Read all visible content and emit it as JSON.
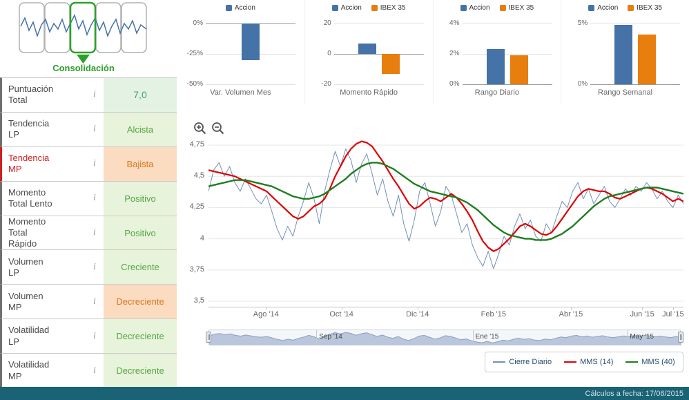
{
  "pattern_panel": {
    "label": "Consolidación"
  },
  "sidebar": {
    "info_icon": "i",
    "rows": [
      {
        "label": "Puntuación Total",
        "value": "7,0",
        "tone": "score",
        "alert": false
      },
      {
        "label": "Tendencia LP",
        "value": "Alcista",
        "tone": "good",
        "alert": false
      },
      {
        "label": "Tendencia MP",
        "value": "Bajista",
        "tone": "bad",
        "alert": true
      },
      {
        "label": "Momento Total Lento",
        "value": "Positivo",
        "tone": "good",
        "alert": false
      },
      {
        "label": "Momento Total Rápido",
        "value": "Positivo",
        "tone": "good",
        "alert": false
      },
      {
        "label": "Volumen LP",
        "value": "Creciente",
        "tone": "good",
        "alert": false
      },
      {
        "label": "Volumen MP",
        "value": "Decreciente",
        "tone": "bad",
        "alert": false
      },
      {
        "label": "Volatilidad LP",
        "value": "Decreciente",
        "tone": "good",
        "alert": false
      },
      {
        "label": "Volatilidad MP",
        "value": "Decreciente",
        "tone": "good",
        "alert": false
      }
    ]
  },
  "icons": {
    "zoom_in": "magnifier-plus",
    "zoom_out": "magnifier-minus",
    "info": "italic-i",
    "pattern_arrow": "arrow-down"
  },
  "colors": {
    "accion": "#4572a7",
    "ibex": "#e87e0e",
    "good_bg": "#e7f3da",
    "good_text": "#55a545",
    "bad_bg": "#fbdcc1",
    "bad_text": "#d8761c",
    "alert_text": "#cf2020",
    "close_line": "#7090b8",
    "mms14": "#e00000",
    "mms40": "#1e7d1e",
    "nav_fill": "#b9c6dc",
    "nav_stroke": "#8aa0c2",
    "footer_bg": "#1a6375",
    "pattern_green": "#2ba02b"
  },
  "footer": {
    "text": "Cálculos a fecha: 17/06/2015"
  },
  "chart_data": {
    "mini_charts": [
      {
        "type": "bar",
        "title": "Var. Volumen Mes",
        "ylim": [
          -50,
          0
        ],
        "yticks": [
          {
            "v": 0,
            "label": "0%"
          },
          {
            "v": -25,
            "label": "-25%"
          },
          {
            "v": -50,
            "label": "-50%"
          }
        ],
        "series": [
          {
            "name": "Accion",
            "color": "#4572a7",
            "value": -30
          }
        ]
      },
      {
        "type": "bar",
        "title": "Momento Rápido",
        "ylim": [
          -20,
          20
        ],
        "yticks": [
          {
            "v": 20,
            "label": "20"
          },
          {
            "v": 0,
            "label": "0"
          },
          {
            "v": -20,
            "label": "-20"
          }
        ],
        "series": [
          {
            "name": "Accion",
            "color": "#4572a7",
            "value": 7
          },
          {
            "name": "IBEX 35",
            "color": "#e87e0e",
            "value": -13
          }
        ]
      },
      {
        "type": "bar",
        "title": "Rango Diario",
        "ylim": [
          0,
          4
        ],
        "yticks": [
          {
            "v": 4,
            "label": "4%"
          },
          {
            "v": 2,
            "label": "2%"
          },
          {
            "v": 0,
            "label": "0%"
          }
        ],
        "series": [
          {
            "name": "Accion",
            "color": "#4572a7",
            "value": 2.3
          },
          {
            "name": "IBEX 35",
            "color": "#e87e0e",
            "value": 1.9
          }
        ]
      },
      {
        "type": "bar",
        "title": "Rango Semanal",
        "ylim": [
          0,
          5
        ],
        "yticks": [
          {
            "v": 5,
            "label": "5%"
          },
          {
            "v": 0,
            "label": "0%"
          }
        ],
        "series": [
          {
            "name": "Accion",
            "color": "#4572a7",
            "value": 4.9
          },
          {
            "name": "IBEX 35",
            "color": "#e87e0e",
            "value": 4.1
          }
        ]
      }
    ],
    "price_chart": {
      "type": "line",
      "ylim": [
        3.45,
        4.85
      ],
      "yticks": [
        {
          "v": 4.75,
          "label": "4,75"
        },
        {
          "v": 4.5,
          "label": "4,5"
        },
        {
          "v": 4.25,
          "label": "4,25"
        },
        {
          "v": 4.0,
          "label": "4"
        },
        {
          "v": 3.75,
          "label": "3,75"
        },
        {
          "v": 3.5,
          "label": "3,5"
        }
      ],
      "xticks": [
        {
          "pos": 0.121,
          "label": "Ago '14"
        },
        {
          "pos": 0.28,
          "label": "Oct '14"
        },
        {
          "pos": 0.44,
          "label": "Dic '14"
        },
        {
          "pos": 0.6,
          "label": "Feb '15"
        },
        {
          "pos": 0.763,
          "label": "Abr '15"
        },
        {
          "pos": 0.913,
          "label": "Jun '15"
        },
        {
          "pos": 0.978,
          "label": "Jul '15"
        }
      ],
      "series": [
        {
          "name": "Cierre Diario",
          "color": "#7090b8",
          "width": 1,
          "values": [
            4.38,
            4.55,
            4.61,
            4.5,
            4.58,
            4.45,
            4.38,
            4.48,
            4.4,
            4.32,
            4.28,
            4.35,
            4.22,
            4.08,
            3.99,
            4.1,
            4.02,
            4.18,
            4.3,
            4.45,
            4.32,
            4.12,
            4.38,
            4.55,
            4.7,
            4.58,
            4.72,
            4.63,
            4.45,
            4.6,
            4.68,
            4.52,
            4.35,
            4.48,
            4.3,
            4.18,
            4.35,
            4.12,
            3.98,
            4.15,
            4.38,
            4.45,
            4.28,
            4.1,
            4.22,
            4.42,
            4.35,
            4.2,
            4.05,
            4.12,
            3.95,
            3.85,
            3.78,
            3.9,
            3.76,
            3.88,
            4.02,
            3.95,
            4.1,
            4.2,
            4.08,
            4.15,
            4.02,
            3.98,
            4.12,
            4.05,
            4.18,
            4.3,
            4.25,
            4.38,
            4.45,
            4.32,
            4.4,
            4.28,
            4.35,
            4.42,
            4.3,
            4.25,
            4.32,
            4.4,
            4.35,
            4.42,
            4.38,
            4.45,
            4.4,
            4.32,
            4.38,
            4.3,
            4.25,
            4.35,
            4.28
          ]
        },
        {
          "name": "MMS (14)",
          "color": "#e00000",
          "width": 2.2,
          "values": [
            4.55,
            4.54,
            4.53,
            4.52,
            4.51,
            4.5,
            4.48,
            4.46,
            4.44,
            4.42,
            4.4,
            4.38,
            4.34,
            4.3,
            4.26,
            4.22,
            4.18,
            4.16,
            4.18,
            4.22,
            4.26,
            4.28,
            4.32,
            4.4,
            4.5,
            4.58,
            4.66,
            4.72,
            4.76,
            4.78,
            4.77,
            4.74,
            4.68,
            4.62,
            4.55,
            4.48,
            4.42,
            4.35,
            4.28,
            4.24,
            4.26,
            4.3,
            4.33,
            4.32,
            4.3,
            4.33,
            4.36,
            4.33,
            4.28,
            4.22,
            4.15,
            4.06,
            3.98,
            3.93,
            3.9,
            3.92,
            3.96,
            4.0,
            4.05,
            4.1,
            4.12,
            4.1,
            4.07,
            4.04,
            4.03,
            4.05,
            4.1,
            4.16,
            4.22,
            4.28,
            4.34,
            4.38,
            4.4,
            4.39,
            4.38,
            4.38,
            4.36,
            4.33,
            4.32,
            4.34,
            4.36,
            4.38,
            4.4,
            4.41,
            4.4,
            4.38,
            4.36,
            4.33,
            4.3,
            4.32,
            4.3
          ]
        },
        {
          "name": "MMS (40)",
          "color": "#1e7d1e",
          "width": 2.4,
          "values": [
            4.42,
            4.43,
            4.44,
            4.45,
            4.46,
            4.47,
            4.47,
            4.47,
            4.46,
            4.45,
            4.44,
            4.43,
            4.42,
            4.4,
            4.38,
            4.36,
            4.34,
            4.33,
            4.32,
            4.32,
            4.33,
            4.34,
            4.36,
            4.39,
            4.42,
            4.45,
            4.48,
            4.52,
            4.55,
            4.58,
            4.6,
            4.61,
            4.61,
            4.6,
            4.58,
            4.56,
            4.53,
            4.5,
            4.47,
            4.44,
            4.42,
            4.4,
            4.38,
            4.37,
            4.36,
            4.35,
            4.34,
            4.33,
            4.31,
            4.29,
            4.26,
            4.23,
            4.19,
            4.15,
            4.11,
            4.08,
            4.05,
            4.03,
            4.02,
            4.01,
            4.0,
            4.0,
            3.99,
            3.99,
            3.99,
            4.0,
            4.02,
            4.04,
            4.07,
            4.1,
            4.14,
            4.18,
            4.22,
            4.26,
            4.29,
            4.32,
            4.34,
            4.35,
            4.36,
            4.37,
            4.38,
            4.39,
            4.4,
            4.41,
            4.41,
            4.41,
            4.4,
            4.39,
            4.38,
            4.37,
            4.36
          ]
        }
      ]
    },
    "navigator": {
      "range": [
        3.6,
        4.85
      ],
      "labels": [
        {
          "pos": 0.227,
          "label": "Sep '14"
        },
        {
          "pos": 0.558,
          "label": "Ene '15"
        },
        {
          "pos": 0.885,
          "label": "May '15"
        }
      ]
    }
  }
}
